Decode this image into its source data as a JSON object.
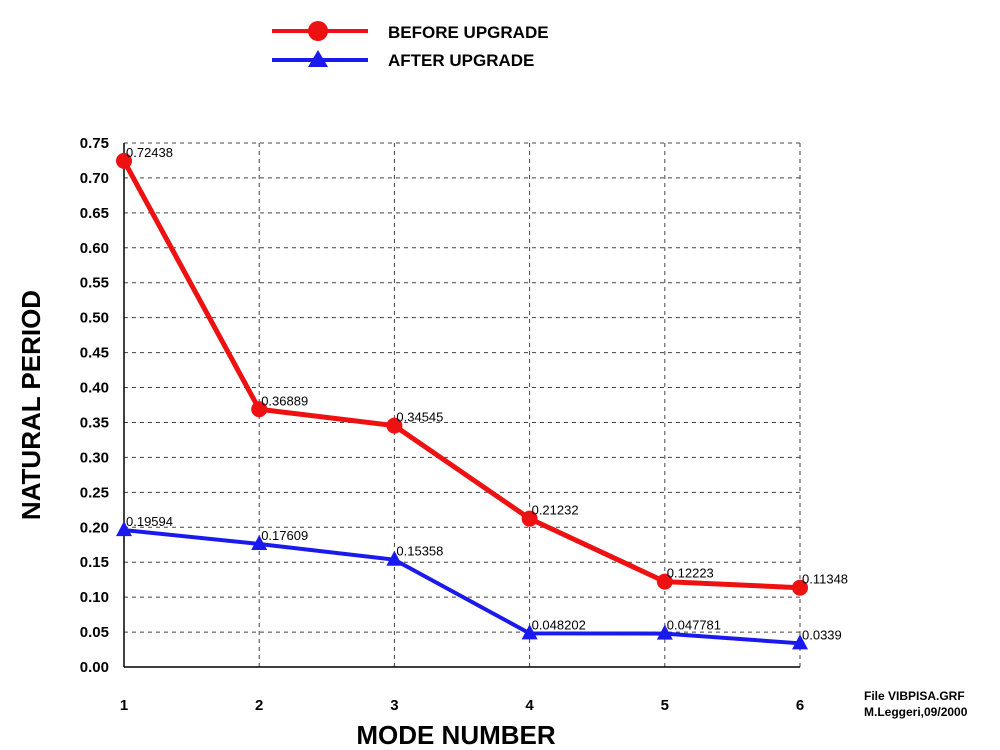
{
  "chart_data": {
    "type": "line",
    "xlabel": "MODE NUMBER",
    "ylabel": "NATURAL PERIOD",
    "x": [
      1,
      2,
      3,
      4,
      5,
      6
    ],
    "xlim": [
      1,
      6
    ],
    "ylim": [
      0,
      0.75
    ],
    "y_ticks": [
      "0.00",
      "0.05",
      "0.10",
      "0.15",
      "0.20",
      "0.25",
      "0.30",
      "0.35",
      "0.40",
      "0.45",
      "0.50",
      "0.55",
      "0.60",
      "0.65",
      "0.70",
      "0.75"
    ],
    "x_ticks": [
      "1",
      "2",
      "3",
      "4",
      "5",
      "6"
    ],
    "grid": true,
    "legend_position": "top-center",
    "series": [
      {
        "name": "BEFORE UPGRADE",
        "color": "#ee1111",
        "marker": "circle",
        "values": [
          0.72438,
          0.36889,
          0.34545,
          0.21232,
          0.12223,
          0.11348
        ],
        "labels": [
          "0.72438",
          "0.36889",
          "0.34545",
          "0.21232",
          "0.12223",
          "0.11348"
        ]
      },
      {
        "name": "AFTER UPGRADE",
        "color": "#1a1aee",
        "marker": "triangle",
        "values": [
          0.19594,
          0.17609,
          0.15358,
          0.048202,
          0.047781,
          0.0339
        ],
        "labels": [
          "0.19594",
          "0.17609",
          "0.15358",
          "0.048202",
          "0.047781",
          "0.0339"
        ]
      }
    ]
  },
  "file_note": {
    "line1": "File VIBPISA.GRF",
    "line2": "M.Leggeri,09/2000"
  }
}
